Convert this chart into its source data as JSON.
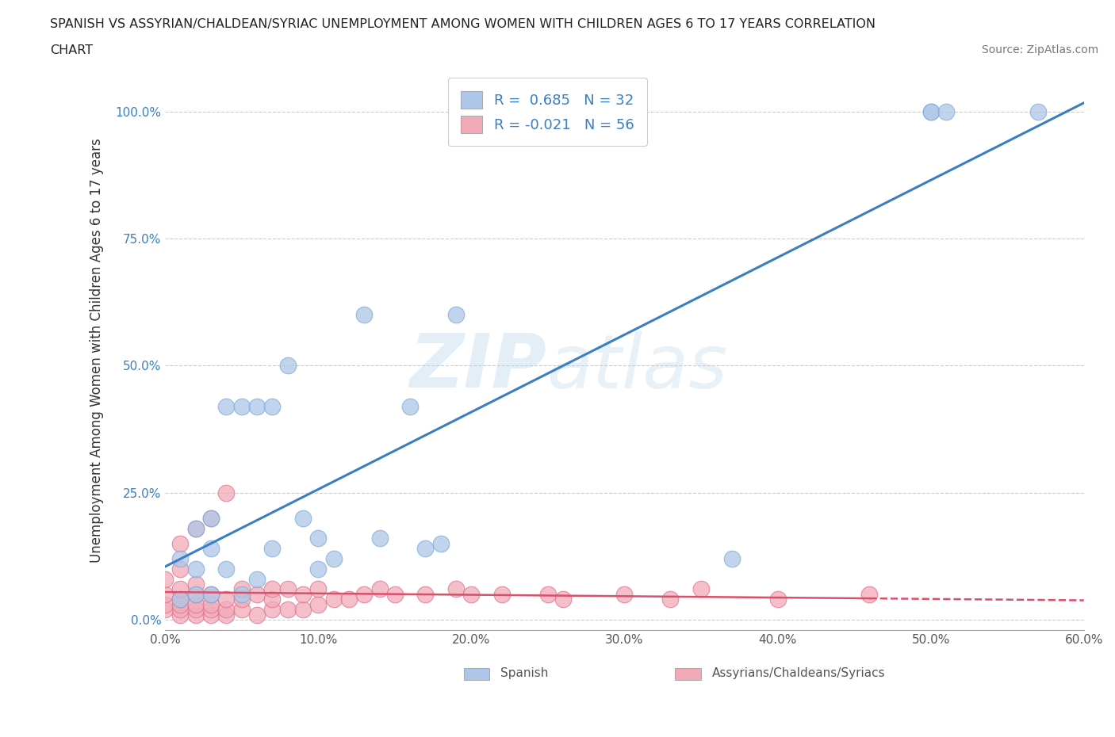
{
  "title_line1": "SPANISH VS ASSYRIAN/CHALDEAN/SYRIAC UNEMPLOYMENT AMONG WOMEN WITH CHILDREN AGES 6 TO 17 YEARS CORRELATION",
  "title_line2": "CHART",
  "source": "Source: ZipAtlas.com",
  "ylabel": "Unemployment Among Women with Children Ages 6 to 17 years",
  "xlim": [
    0.0,
    0.6
  ],
  "ylim": [
    -0.02,
    1.08
  ],
  "xticks": [
    0.0,
    0.1,
    0.2,
    0.3,
    0.4,
    0.5,
    0.6
  ],
  "xticklabels": [
    "0.0%",
    "10.0%",
    "20.0%",
    "30.0%",
    "40.0%",
    "50.0%",
    "60.0%"
  ],
  "yticks": [
    0.0,
    0.25,
    0.5,
    0.75,
    1.0
  ],
  "yticklabels": [
    "0.0%",
    "25.0%",
    "50.0%",
    "75.0%",
    "100.0%"
  ],
  "watermark_zip": "ZIP",
  "watermark_atlas": "atlas",
  "legend_r_blue": "R =  0.685",
  "legend_n_blue": "N = 32",
  "legend_r_pink": "R = -0.021",
  "legend_n_pink": "N = 56",
  "blue_color": "#aec6e8",
  "blue_edge": "#7aaad4",
  "pink_color": "#f2aab8",
  "pink_edge": "#e07090",
  "trendline_blue": "#3a7fc1",
  "trendline_pink": "#d9506a",
  "trendline_pink_dash": "--",
  "background": "#ffffff",
  "grid_color": "#cccccc",
  "spanish_x": [
    0.01,
    0.01,
    0.02,
    0.02,
    0.02,
    0.03,
    0.03,
    0.03,
    0.04,
    0.04,
    0.05,
    0.05,
    0.06,
    0.06,
    0.07,
    0.07,
    0.08,
    0.09,
    0.1,
    0.1,
    0.11,
    0.13,
    0.14,
    0.16,
    0.17,
    0.18,
    0.19,
    0.37,
    0.5,
    0.5,
    0.51,
    0.57
  ],
  "spanish_y": [
    0.04,
    0.12,
    0.05,
    0.1,
    0.18,
    0.05,
    0.14,
    0.2,
    0.1,
    0.42,
    0.05,
    0.42,
    0.08,
    0.42,
    0.14,
    0.42,
    0.5,
    0.2,
    0.1,
    0.16,
    0.12,
    0.6,
    0.16,
    0.42,
    0.14,
    0.15,
    0.6,
    0.12,
    1.0,
    1.0,
    1.0,
    1.0
  ],
  "assyrian_x": [
    0.0,
    0.0,
    0.0,
    0.0,
    0.01,
    0.01,
    0.01,
    0.01,
    0.01,
    0.01,
    0.01,
    0.02,
    0.02,
    0.02,
    0.02,
    0.02,
    0.02,
    0.03,
    0.03,
    0.03,
    0.03,
    0.03,
    0.04,
    0.04,
    0.04,
    0.04,
    0.05,
    0.05,
    0.05,
    0.06,
    0.06,
    0.07,
    0.07,
    0.07,
    0.08,
    0.08,
    0.09,
    0.09,
    0.1,
    0.1,
    0.11,
    0.12,
    0.13,
    0.14,
    0.15,
    0.17,
    0.19,
    0.2,
    0.22,
    0.25,
    0.26,
    0.3,
    0.33,
    0.35,
    0.4,
    0.46
  ],
  "assyrian_y": [
    0.02,
    0.03,
    0.05,
    0.08,
    0.01,
    0.02,
    0.03,
    0.04,
    0.06,
    0.1,
    0.15,
    0.01,
    0.02,
    0.03,
    0.05,
    0.07,
    0.18,
    0.01,
    0.02,
    0.03,
    0.05,
    0.2,
    0.01,
    0.02,
    0.04,
    0.25,
    0.02,
    0.04,
    0.06,
    0.01,
    0.05,
    0.02,
    0.04,
    0.06,
    0.02,
    0.06,
    0.02,
    0.05,
    0.03,
    0.06,
    0.04,
    0.04,
    0.05,
    0.06,
    0.05,
    0.05,
    0.06,
    0.05,
    0.05,
    0.05,
    0.04,
    0.05,
    0.04,
    0.06,
    0.04,
    0.05
  ]
}
